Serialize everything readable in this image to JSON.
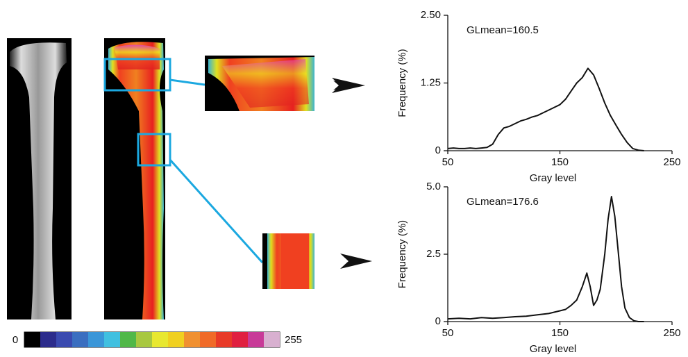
{
  "chart_data": [
    {
      "type": "line",
      "annotation": "GLmean=160.5",
      "xlabel": "Gray level",
      "ylabel": "Frequency (%)",
      "color": "#111111",
      "x": [
        50,
        55,
        60,
        65,
        70,
        75,
        80,
        85,
        90,
        95,
        100,
        105,
        110,
        115,
        120,
        125,
        130,
        135,
        140,
        145,
        150,
        155,
        160,
        165,
        170,
        175,
        180,
        185,
        190,
        195,
        200,
        205,
        210,
        215,
        220,
        225
      ],
      "values": [
        0.04,
        0.05,
        0.04,
        0.04,
        0.05,
        0.04,
        0.05,
        0.06,
        0.12,
        0.3,
        0.42,
        0.45,
        0.5,
        0.55,
        0.58,
        0.62,
        0.65,
        0.7,
        0.75,
        0.8,
        0.85,
        0.95,
        1.1,
        1.25,
        1.35,
        1.52,
        1.4,
        1.15,
        0.88,
        0.65,
        0.47,
        0.3,
        0.15,
        0.04,
        0.01,
        0
      ],
      "xlim": [
        50,
        250
      ],
      "xticks": [
        50,
        150,
        250
      ],
      "ylim": [
        0,
        2.5
      ],
      "yticks": [
        0,
        1.25,
        {
          "value": 2.5,
          "label": "2.50"
        }
      ]
    },
    {
      "type": "line",
      "annotation": "GLmean=176.6",
      "xlabel": "Gray level",
      "ylabel": "Frequency (%)",
      "color": "#111111",
      "x": [
        50,
        60,
        70,
        80,
        90,
        100,
        110,
        120,
        130,
        140,
        150,
        155,
        160,
        165,
        170,
        174,
        177,
        180,
        183,
        186,
        190,
        193,
        196,
        199,
        202,
        205,
        208,
        212,
        216,
        220,
        225
      ],
      "values": [
        0.1,
        0.12,
        0.1,
        0.15,
        0.12,
        0.15,
        0.18,
        0.2,
        0.25,
        0.3,
        0.4,
        0.45,
        0.6,
        0.8,
        1.3,
        1.8,
        1.3,
        0.6,
        0.8,
        1.2,
        2.5,
        3.8,
        4.64,
        3.9,
        2.6,
        1.3,
        0.5,
        0.15,
        0.03,
        0,
        0
      ],
      "xlim": [
        50,
        250
      ],
      "xticks": [
        50,
        150,
        250
      ],
      "ylim": [
        0,
        5
      ],
      "yticks": [
        0,
        2.5,
        {
          "value": 5,
          "label": "5.0"
        }
      ]
    }
  ],
  "colorbar": {
    "min": 0,
    "max": 255
  }
}
